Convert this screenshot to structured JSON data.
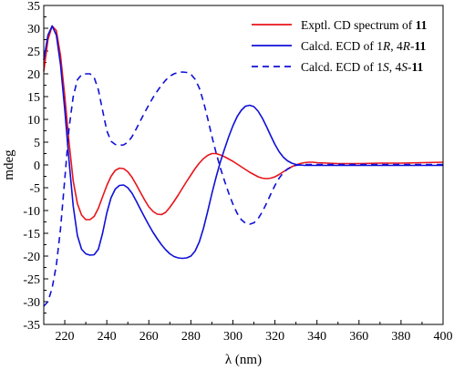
{
  "chart_data": {
    "type": "line",
    "xlabel": "λ (nm)",
    "ylabel": "mdeg",
    "xlim": [
      210,
      400
    ],
    "ylim": [
      -35,
      35
    ],
    "x_ticks": [
      220,
      240,
      260,
      280,
      300,
      320,
      340,
      360,
      380,
      400
    ],
    "y_ticks": [
      -35,
      -30,
      -25,
      -20,
      -15,
      -10,
      -5,
      0,
      5,
      10,
      15,
      20,
      25,
      30,
      35
    ],
    "grid": false,
    "legend_position": "top-right",
    "series": [
      {
        "name_parts": [
          {
            "text": "Exptl. CD spectrum of ",
            "style": "normal"
          },
          {
            "text": "11",
            "style": "bold"
          }
        ],
        "color": "#e8141b",
        "dash": "solid",
        "x": [
          210,
          212,
          214,
          216,
          218,
          220,
          222,
          224,
          226,
          228,
          230,
          232,
          234,
          236,
          238,
          240,
          242,
          244,
          246,
          248,
          250,
          252,
          254,
          256,
          258,
          260,
          262,
          264,
          266,
          268,
          270,
          272,
          274,
          276,
          278,
          280,
          282,
          284,
          286,
          288,
          290,
          292,
          294,
          296,
          298,
          300,
          302,
          304,
          306,
          308,
          310,
          312,
          314,
          316,
          318,
          320,
          322,
          324,
          326,
          328,
          330,
          332,
          334,
          336,
          338,
          340,
          345,
          350,
          355,
          360,
          370,
          380,
          390,
          400
        ],
        "y": [
          20.5,
          27.5,
          30.5,
          29.5,
          24,
          15,
          5,
          -3.5,
          -8.5,
          -11,
          -12,
          -12,
          -11.3,
          -9.5,
          -7,
          -4.5,
          -2.5,
          -1.2,
          -0.7,
          -0.8,
          -1.5,
          -2.7,
          -4.3,
          -6,
          -7.7,
          -9.2,
          -10.2,
          -10.8,
          -10.9,
          -10.4,
          -9.3,
          -8,
          -6.6,
          -5.1,
          -3.6,
          -2.2,
          -0.8,
          0.4,
          1.4,
          2.1,
          2.5,
          2.5,
          2.2,
          1.8,
          1.3,
          0.8,
          0.2,
          -0.4,
          -1,
          -1.6,
          -2.1,
          -2.6,
          -2.9,
          -3,
          -2.9,
          -2.6,
          -2.1,
          -1.5,
          -0.9,
          -0.4,
          0,
          0.3,
          0.5,
          0.6,
          0.6,
          0.5,
          0.4,
          0.3,
          0.3,
          0.3,
          0.4,
          0.4,
          0.5,
          0.6
        ]
      },
      {
        "name_parts": [
          {
            "text": "Calcd. ECD of 1",
            "style": "normal"
          },
          {
            "text": "R",
            "style": "italic"
          },
          {
            "text": ", 4",
            "style": "normal"
          },
          {
            "text": "R",
            "style": "italic"
          },
          {
            "text": "-",
            "style": "normal"
          },
          {
            "text": "11",
            "style": "bold"
          }
        ],
        "color": "#1010d8",
        "dash": "solid",
        "x": [
          210,
          212,
          214,
          216,
          218,
          220,
          222,
          224,
          226,
          228,
          230,
          232,
          234,
          236,
          238,
          240,
          242,
          244,
          246,
          248,
          250,
          252,
          254,
          256,
          258,
          260,
          262,
          264,
          266,
          268,
          270,
          272,
          274,
          276,
          278,
          280,
          282,
          284,
          286,
          288,
          290,
          292,
          294,
          296,
          298,
          300,
          302,
          304,
          306,
          308,
          310,
          312,
          314,
          316,
          318,
          320,
          322,
          324,
          326,
          328,
          330,
          332,
          334,
          336,
          338,
          340,
          342,
          344,
          346,
          348,
          350,
          355,
          360,
          370,
          380,
          390,
          400
        ],
        "y": [
          23,
          28.5,
          30.5,
          28.5,
          22,
          12,
          1,
          -9,
          -15.5,
          -18.5,
          -19.5,
          -19.8,
          -19.7,
          -18.5,
          -15,
          -10.5,
          -7.2,
          -5.3,
          -4.5,
          -4.4,
          -5,
          -6.2,
          -7.9,
          -9.7,
          -11.5,
          -13.2,
          -14.8,
          -16.2,
          -17.5,
          -18.6,
          -19.5,
          -20.1,
          -20.4,
          -20.5,
          -20.4,
          -20,
          -18.9,
          -16.9,
          -13.9,
          -10.2,
          -6.3,
          -2.7,
          0.6,
          3.5,
          6.2,
          8.6,
          10.6,
          12,
          12.9,
          13.1,
          12.8,
          11.8,
          10.3,
          8.4,
          6.4,
          4.5,
          2.9,
          1.7,
          0.9,
          0.4,
          0.1,
          0,
          -0.1,
          -0.1,
          -0.1,
          -0.1,
          -0.1,
          -0.1,
          -0.1,
          -0.1,
          -0.1,
          -0.1,
          -0.1,
          -0.1,
          -0.1,
          -0.1,
          -0.1
        ]
      },
      {
        "name_parts": [
          {
            "text": "Calcd. ECD of 1",
            "style": "normal"
          },
          {
            "text": "S",
            "style": "italic"
          },
          {
            "text": ", 4",
            "style": "normal"
          },
          {
            "text": "S",
            "style": "italic"
          },
          {
            "text": "-",
            "style": "normal"
          },
          {
            "text": "11",
            "style": "bold"
          }
        ],
        "color": "#1010d8",
        "dash": "dashed",
        "x": [
          210,
          212,
          214,
          216,
          218,
          220,
          222,
          224,
          226,
          228,
          230,
          232,
          234,
          236,
          238,
          240,
          242,
          244,
          246,
          248,
          250,
          252,
          254,
          256,
          258,
          260,
          262,
          264,
          266,
          268,
          270,
          272,
          274,
          276,
          278,
          280,
          282,
          284,
          286,
          288,
          290,
          292,
          294,
          296,
          298,
          300,
          302,
          304,
          306,
          308,
          310,
          312,
          314,
          316,
          318,
          320,
          322,
          324,
          326,
          328,
          330,
          332,
          334,
          336,
          338,
          340,
          342,
          344,
          346,
          348,
          350,
          355,
          360,
          370,
          380,
          390,
          400
        ],
        "y": [
          -31,
          -30,
          -27,
          -22,
          -14,
          -3,
          8,
          15,
          18.7,
          19.8,
          20,
          20,
          19.2,
          16.5,
          12,
          7.5,
          5.2,
          4.5,
          4.3,
          4.4,
          5,
          6.2,
          7.9,
          9.7,
          11.5,
          13.2,
          14.8,
          16.2,
          17.5,
          18.6,
          19.5,
          20,
          20.3,
          20.4,
          20.3,
          19.9,
          18.8,
          16.9,
          13.9,
          10.2,
          6.3,
          2.7,
          -0.6,
          -3.5,
          -6.2,
          -8.6,
          -10.6,
          -12,
          -12.8,
          -13,
          -12.7,
          -11.8,
          -10.3,
          -8.4,
          -6.4,
          -4.5,
          -2.9,
          -1.7,
          -0.9,
          -0.4,
          -0.1,
          0,
          0.1,
          0.1,
          0.1,
          0.1,
          0.1,
          0.1,
          0.1,
          0.1,
          0.1,
          0.1,
          0.1,
          0.1,
          0.1,
          0.1,
          0.1
        ]
      }
    ]
  }
}
